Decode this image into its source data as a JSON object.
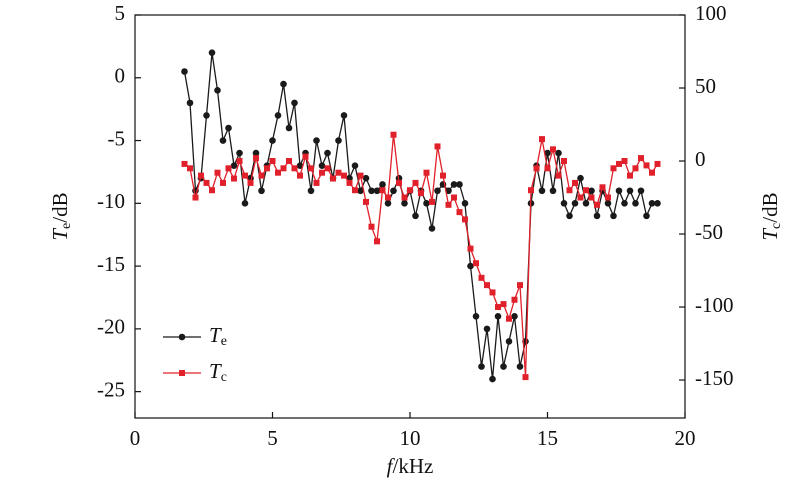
{
  "chart_data": {
    "type": "line",
    "xlabel": "f/kHz",
    "ylabel": "Te/dB",
    "y2label": "Tc/dB",
    "x": [
      1.8,
      2,
      2.2,
      2.4,
      2.6,
      2.8,
      3,
      3.2,
      3.4,
      3.6,
      3.8,
      4,
      4.2,
      4.4,
      4.6,
      4.8,
      5,
      5.2,
      5.4,
      5.6,
      5.8,
      6,
      6.2,
      6.4,
      6.6,
      6.8,
      7,
      7.2,
      7.4,
      7.6,
      7.8,
      8,
      8.2,
      8.4,
      8.6,
      8.8,
      9,
      9.2,
      9.4,
      9.6,
      9.8,
      10,
      10.2,
      10.4,
      10.6,
      10.8,
      11,
      11.2,
      11.4,
      11.6,
      11.8,
      12,
      12.2,
      12.4,
      12.6,
      12.8,
      13,
      13.2,
      13.4,
      13.6,
      13.8,
      14,
      14.2,
      14.4,
      14.6,
      14.8,
      15,
      15.2,
      15.4,
      15.6,
      15.8,
      16,
      16.2,
      16.4,
      16.6,
      16.8,
      17,
      17.2,
      17.4,
      17.6,
      17.8,
      18,
      18.2,
      18.4,
      18.6,
      18.8,
      19
    ],
    "series": [
      {
        "name": "Te",
        "color": "#1a1a1a",
        "marker": "circle",
        "values": [
          0.5,
          -2,
          -9,
          -8,
          -3,
          2,
          -1,
          -5,
          -4,
          -7,
          -6,
          -10,
          -8,
          -6,
          -9,
          -7,
          -5,
          -3,
          -0.5,
          -4,
          -2,
          -7,
          -6,
          -9,
          -5,
          -7,
          -6,
          -8,
          -5,
          -3,
          -8,
          -7,
          -9,
          -8,
          -9,
          -9,
          -8.5,
          -10,
          -9,
          -8,
          -10,
          -9,
          -11,
          -9,
          -10,
          -12,
          -9,
          -8.5,
          -9,
          -8.5,
          -8.5,
          -10,
          -15,
          -19,
          -23,
          -20,
          -24,
          -19,
          -23,
          -21,
          -19,
          -23,
          -21,
          -10,
          -7,
          -9,
          -6,
          -9,
          -6,
          -10,
          -11,
          -10,
          -8,
          -10,
          -9,
          -11,
          -9,
          -10,
          -11,
          -9,
          -10,
          -9,
          -10,
          -9,
          -11,
          -10,
          -10
        ]
      },
      {
        "name": "Tc",
        "color": "#e0202a",
        "marker": "square",
        "axis": "y2",
        "values": [
          -2,
          -5,
          -25,
          -10,
          -15,
          -20,
          -8,
          -15,
          -5,
          -12,
          0,
          -10,
          -15,
          2,
          -10,
          -5,
          0,
          -8,
          -5,
          0,
          -5,
          -10,
          3,
          -5,
          -15,
          -8,
          -5,
          -12,
          -8,
          -10,
          -15,
          -20,
          -10,
          -28,
          -45,
          -55,
          -20,
          -25,
          18,
          -15,
          -25,
          -20,
          -15,
          -22,
          -8,
          -28,
          10,
          -10,
          -30,
          -25,
          -35,
          -40,
          -60,
          -70,
          -80,
          -85,
          -90,
          -100,
          -98,
          -108,
          -95,
          -85,
          -148,
          -20,
          -5,
          15,
          -5,
          8,
          -10,
          0,
          -20,
          -15,
          -25,
          -20,
          -25,
          -30,
          -18,
          -25,
          -5,
          -2,
          0,
          -10,
          -5,
          2,
          -3,
          -8,
          -2
        ]
      }
    ],
    "xlim": [
      0,
      20
    ],
    "xticks": [
      0,
      5,
      10,
      15,
      20
    ],
    "ylim": [
      -27.1,
      5
    ],
    "yticks": [
      -25,
      -20,
      -15,
      -10,
      -5,
      0,
      5
    ],
    "y2lim": [
      -176,
      100
    ],
    "y2ticks": [
      -150,
      -100,
      -50,
      0,
      50,
      100
    ],
    "grid": false,
    "legend": "lower left"
  }
}
